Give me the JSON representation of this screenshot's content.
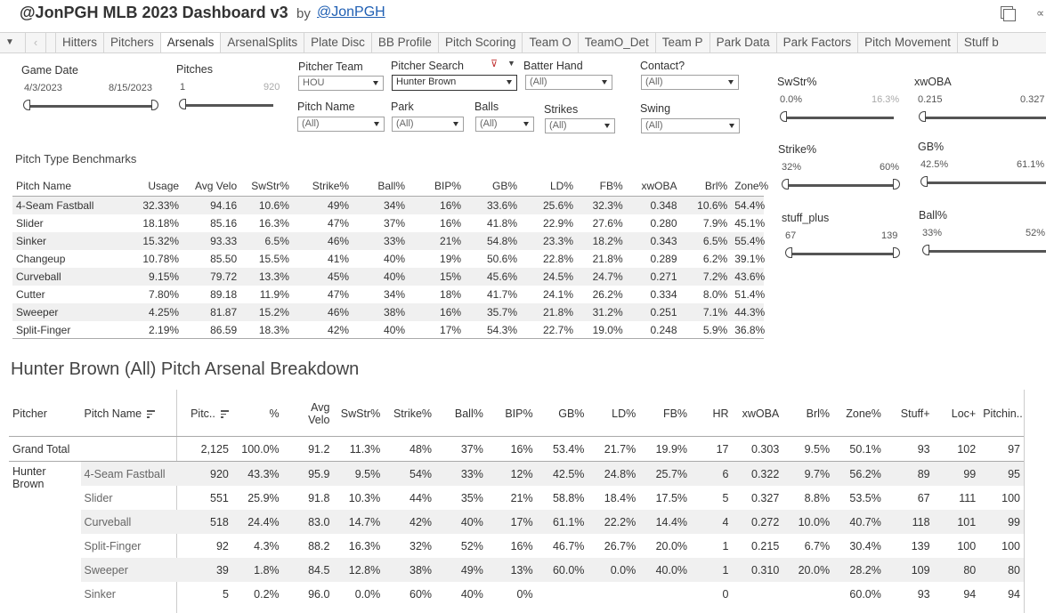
{
  "header": {
    "title": "@JonPGH MLB 2023 Dashboard v3",
    "by": "by",
    "author_link": "@JonPGH",
    "window_icons": [
      "restore-icon",
      "share-icon"
    ]
  },
  "tabs": {
    "items": [
      "Hitters",
      "Pitchers",
      "Arsenals",
      "ArsenalSplits",
      "Plate Disc",
      "BB Profile",
      "Pitch Scoring",
      "Team O",
      "TeamO_Det",
      "Team P",
      "Park Data",
      "Park Factors",
      "Pitch Movement",
      "Stuff b"
    ],
    "active": "Arsenals"
  },
  "filters": {
    "game_date": {
      "label": "Game Date",
      "start": "4/3/2023",
      "end": "8/15/2023"
    },
    "pitches": {
      "label": "Pitches",
      "min": "1",
      "max": "920"
    },
    "pitcher_team": {
      "label": "Pitcher Team",
      "value": "HOU"
    },
    "pitcher_search": {
      "label": "Pitcher Search",
      "value": "Hunter Brown"
    },
    "batter_hand": {
      "label": "Batter Hand",
      "value": "(All)"
    },
    "contact": {
      "label": "Contact?",
      "value": "(All)"
    },
    "pitch_name": {
      "label": "Pitch Name",
      "value": "(All)"
    },
    "park": {
      "label": "Park",
      "value": "(All)"
    },
    "balls": {
      "label": "Balls",
      "value": "(All)"
    },
    "strikes": {
      "label": "Strikes",
      "value": "(All)"
    },
    "swing": {
      "label": "Swing",
      "value": "(All)"
    }
  },
  "range_sliders": {
    "swstr": {
      "label": "SwStr%",
      "min": "0.0%",
      "max": "16.3%"
    },
    "xwoba": {
      "label": "xwOBA",
      "min": "0.215",
      "max": "0.327"
    },
    "strike": {
      "label": "Strike%",
      "min": "32%",
      "max": "60%"
    },
    "gb": {
      "label": "GB%",
      "min": "42.5%",
      "max": "61.1%"
    },
    "stuff_plus": {
      "label": "stuff_plus",
      "min": "67",
      "max": "139"
    },
    "ball": {
      "label": "Ball%",
      "min": "33%",
      "max": "52%"
    }
  },
  "benchmarks": {
    "title": "Pitch Type Benchmarks",
    "columns": [
      "Pitch Name",
      "Usage",
      "Avg Velo",
      "SwStr%",
      "Strike%",
      "Ball%",
      "BIP%",
      "GB%",
      "LD%",
      "FB%",
      "xwOBA",
      "Brl%",
      "Zone%"
    ],
    "rows": [
      [
        "4-Seam Fastball",
        "32.33%",
        "94.16",
        "10.6%",
        "49%",
        "34%",
        "16%",
        "33.6%",
        "25.6%",
        "32.3%",
        "0.348",
        "10.6%",
        "54.4%"
      ],
      [
        "Slider",
        "18.18%",
        "85.16",
        "16.3%",
        "47%",
        "37%",
        "16%",
        "41.8%",
        "22.9%",
        "27.6%",
        "0.280",
        "7.9%",
        "45.1%"
      ],
      [
        "Sinker",
        "15.32%",
        "93.33",
        "6.5%",
        "46%",
        "33%",
        "21%",
        "54.8%",
        "23.3%",
        "18.2%",
        "0.343",
        "6.5%",
        "55.4%"
      ],
      [
        "Changeup",
        "10.78%",
        "85.50",
        "15.5%",
        "41%",
        "40%",
        "19%",
        "50.6%",
        "22.8%",
        "21.8%",
        "0.289",
        "6.2%",
        "39.1%"
      ],
      [
        "Curveball",
        "9.15%",
        "79.72",
        "13.3%",
        "45%",
        "40%",
        "15%",
        "45.6%",
        "24.5%",
        "24.7%",
        "0.271",
        "7.2%",
        "43.6%"
      ],
      [
        "Cutter",
        "7.80%",
        "89.18",
        "11.9%",
        "47%",
        "34%",
        "18%",
        "41.7%",
        "24.1%",
        "26.2%",
        "0.334",
        "8.0%",
        "51.4%"
      ],
      [
        "Sweeper",
        "4.25%",
        "81.87",
        "15.2%",
        "46%",
        "38%",
        "16%",
        "35.7%",
        "21.8%",
        "31.2%",
        "0.251",
        "7.1%",
        "44.3%"
      ],
      [
        "Split-Finger",
        "2.19%",
        "86.59",
        "18.3%",
        "42%",
        "40%",
        "17%",
        "54.3%",
        "22.7%",
        "19.0%",
        "0.248",
        "5.9%",
        "36.8%"
      ]
    ]
  },
  "breakdown": {
    "title": "Hunter Brown (All) Pitch Arsenal Breakdown",
    "columns": [
      "Pitcher",
      "Pitch Name",
      "Pitc..",
      "%",
      "Avg Velo",
      "SwStr%",
      "Strike%",
      "Ball%",
      "BIP%",
      "GB%",
      "LD%",
      "FB%",
      "HR",
      "xwOBA",
      "Brl%",
      "Zone%",
      "Stuff+",
      "Loc+",
      "Pitchin.."
    ],
    "avg_velo_line1": "Avg",
    "avg_velo_line2": "Velo",
    "grand_total": [
      "Grand Total",
      "",
      "2,125",
      "100.0%",
      "91.2",
      "11.3%",
      "48%",
      "37%",
      "16%",
      "53.4%",
      "21.7%",
      "19.9%",
      "17",
      "0.303",
      "9.5%",
      "50.1%",
      "93",
      "102",
      "97"
    ],
    "pitcher_name": "Hunter Brown",
    "rows": [
      [
        "4-Seam Fastball",
        "920",
        "43.3%",
        "95.9",
        "9.5%",
        "54%",
        "33%",
        "12%",
        "42.5%",
        "24.8%",
        "25.7%",
        "6",
        "0.322",
        "9.7%",
        "56.2%",
        "89",
        "99",
        "95"
      ],
      [
        "Slider",
        "551",
        "25.9%",
        "91.8",
        "10.3%",
        "44%",
        "35%",
        "21%",
        "58.8%",
        "18.4%",
        "17.5%",
        "5",
        "0.327",
        "8.8%",
        "53.5%",
        "67",
        "111",
        "100"
      ],
      [
        "Curveball",
        "518",
        "24.4%",
        "83.0",
        "14.7%",
        "42%",
        "40%",
        "17%",
        "61.1%",
        "22.2%",
        "14.4%",
        "4",
        "0.272",
        "10.0%",
        "40.7%",
        "118",
        "101",
        "99"
      ],
      [
        "Split-Finger",
        "92",
        "4.3%",
        "88.2",
        "16.3%",
        "32%",
        "52%",
        "16%",
        "46.7%",
        "26.7%",
        "20.0%",
        "1",
        "0.215",
        "6.7%",
        "30.4%",
        "139",
        "100",
        "100"
      ],
      [
        "Sweeper",
        "39",
        "1.8%",
        "84.5",
        "12.8%",
        "38%",
        "49%",
        "13%",
        "60.0%",
        "0.0%",
        "40.0%",
        "1",
        "0.310",
        "20.0%",
        "28.2%",
        "109",
        "80",
        "80"
      ],
      [
        "Sinker",
        "5",
        "0.2%",
        "96.0",
        "0.0%",
        "60%",
        "40%",
        "0%",
        "",
        "",
        "",
        "0",
        "",
        "",
        "60.0%",
        "93",
        "94",
        "94"
      ]
    ]
  }
}
